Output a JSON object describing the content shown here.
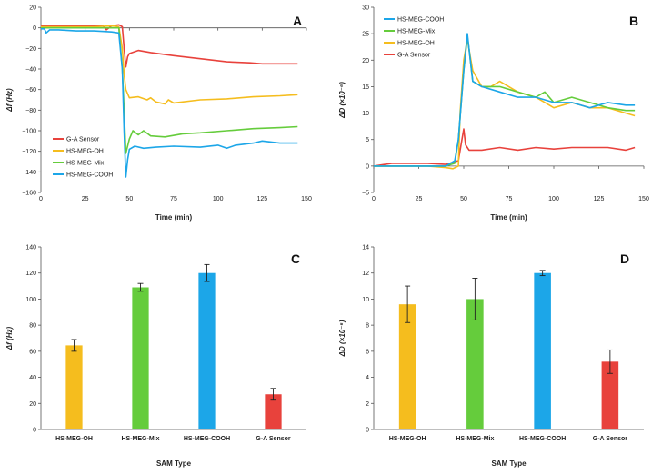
{
  "colors": {
    "red": "#e8423c",
    "yellow": "#f5bd1e",
    "green": "#65cc3c",
    "blue": "#1ca6e8",
    "axis": "#555555"
  },
  "chart_data": [
    {
      "panel": "A",
      "type": "line",
      "title": "",
      "xlabel": "Time (min)",
      "ylabel": "Δf (Hz)",
      "xlim": [
        0,
        150
      ],
      "ylim": [
        -160,
        20
      ],
      "xticks": [
        0,
        25,
        50,
        75,
        100,
        125,
        150
      ],
      "yticks": [
        20,
        0,
        -20,
        -40,
        -60,
        -80,
        -100,
        -120,
        -140,
        -160
      ],
      "legend_position": "bottom-left",
      "legend": [
        "G-A Sensor",
        "HS-MEG-OH",
        "HS-MEG-Mix",
        "HS-MEG-COOH"
      ],
      "series": [
        {
          "name": "G-A Sensor",
          "color": "red",
          "x": [
            0,
            10,
            20,
            30,
            35,
            37,
            40,
            44,
            46,
            47,
            48,
            49,
            50,
            55,
            62,
            75,
            90,
            105,
            118,
            125,
            135,
            145
          ],
          "y": [
            2,
            2,
            2,
            2,
            2,
            -2,
            2,
            3,
            1,
            -20,
            -38,
            -28,
            -25,
            -22,
            -24,
            -27,
            -30,
            -33,
            -34,
            -35,
            -35,
            -35
          ]
        },
        {
          "name": "HS-MEG-OH",
          "color": "yellow",
          "x": [
            0,
            10,
            20,
            30,
            40,
            44,
            46,
            47,
            48,
            50,
            55,
            60,
            62,
            65,
            70,
            72,
            75,
            90,
            105,
            120,
            135,
            145
          ],
          "y": [
            1,
            1,
            1,
            1,
            2,
            1,
            -20,
            -45,
            -60,
            -68,
            -67,
            -70,
            -68,
            -72,
            -74,
            -70,
            -73,
            -70,
            -69,
            -67,
            -66,
            -65
          ]
        },
        {
          "name": "HS-MEG-Mix",
          "color": "green",
          "x": [
            0,
            10,
            20,
            30,
            40,
            44,
            46,
            47,
            48,
            50,
            52,
            55,
            58,
            62,
            70,
            80,
            90,
            105,
            120,
            135,
            145
          ],
          "y": [
            0,
            0,
            0,
            0,
            0,
            0,
            -40,
            -80,
            -122,
            -108,
            -100,
            -104,
            -100,
            -105,
            -106,
            -103,
            -102,
            -100,
            -98,
            -97,
            -96
          ]
        },
        {
          "name": "HS-MEG-COOH",
          "color": "blue",
          "x": [
            0,
            2,
            3,
            5,
            10,
            20,
            30,
            40,
            44,
            46,
            47,
            48,
            49,
            50,
            53,
            58,
            65,
            75,
            90,
            100,
            105,
            110,
            120,
            125,
            135,
            145
          ],
          "y": [
            -1,
            -1,
            -5,
            -2,
            -2,
            -3,
            -3,
            -4,
            -5,
            -40,
            -100,
            -145,
            -128,
            -118,
            -115,
            -117,
            -116,
            -115,
            -116,
            -114,
            -117,
            -114,
            -112,
            -110,
            -112,
            -112
          ]
        }
      ]
    },
    {
      "panel": "B",
      "type": "line",
      "title": "",
      "xlabel": "Time (min)",
      "ylabel": "ΔD (×10⁻⁶)",
      "xlim": [
        0,
        150
      ],
      "ylim": [
        -5,
        30
      ],
      "xticks": [
        0,
        25,
        50,
        75,
        100,
        125,
        150
      ],
      "yticks": [
        30,
        25,
        20,
        15,
        10,
        5,
        0,
        -5
      ],
      "legend_position": "top-left",
      "legend": [
        "HS-MEG-COOH",
        "HS-MEG-Mix",
        "HS-MEG-OH",
        "G-A Sensor"
      ],
      "series": [
        {
          "name": "G-A Sensor",
          "color": "red",
          "x": [
            0,
            10,
            20,
            30,
            40,
            47,
            49,
            50,
            51,
            53,
            60,
            70,
            80,
            90,
            100,
            110,
            120,
            130,
            140,
            145
          ],
          "y": [
            0,
            0.5,
            0.5,
            0.5,
            0.3,
            1,
            5,
            7,
            4,
            3,
            3,
            3.5,
            3,
            3.5,
            3.2,
            3.5,
            3.5,
            3.5,
            3,
            3.5
          ]
        },
        {
          "name": "HS-MEG-OH",
          "color": "yellow",
          "x": [
            0,
            10,
            20,
            30,
            40,
            44,
            47,
            48,
            50,
            52,
            53,
            55,
            60,
            65,
            70,
            80,
            90,
            100,
            110,
            120,
            130,
            140,
            145
          ],
          "y": [
            0,
            0,
            0,
            0,
            -0.3,
            -0.5,
            0,
            10,
            20,
            24,
            22,
            18,
            15,
            15,
            16,
            14,
            13,
            11,
            12,
            11,
            11,
            10,
            9.5
          ]
        },
        {
          "name": "HS-MEG-Mix",
          "color": "green",
          "x": [
            0,
            10,
            20,
            30,
            40,
            45,
            47,
            50,
            52,
            53,
            55,
            60,
            70,
            80,
            90,
            95,
            100,
            110,
            120,
            130,
            140,
            145
          ],
          "y": [
            0,
            0,
            0,
            0,
            0,
            0.5,
            5,
            18,
            24.5,
            22,
            16,
            15,
            15,
            14,
            13,
            14,
            12,
            13,
            12,
            11,
            10.5,
            10.5
          ]
        },
        {
          "name": "HS-MEG-COOH",
          "color": "blue",
          "x": [
            0,
            10,
            20,
            30,
            40,
            45,
            47,
            50,
            52,
            53,
            55,
            60,
            70,
            80,
            90,
            100,
            110,
            120,
            130,
            140,
            145
          ],
          "y": [
            0,
            0,
            0,
            0,
            0,
            1,
            5,
            18,
            25,
            22,
            16,
            15,
            14,
            13,
            13,
            12,
            12,
            11,
            12,
            11.5,
            11.5
          ]
        }
      ]
    },
    {
      "panel": "C",
      "type": "bar",
      "title": "",
      "xlabel": "SAM Type",
      "ylabel": "Δf (Hz)",
      "ylim": [
        0,
        140
      ],
      "yticks": [
        0,
        20,
        40,
        60,
        80,
        100,
        120,
        140
      ],
      "categories": [
        "HS-MEG-OH",
        "HS-MEG-Mix",
        "HS-MEG-COOH",
        "G-A Sensor"
      ],
      "values": [
        64.5,
        109,
        120,
        27
      ],
      "errors": [
        4.5,
        3,
        6.5,
        4.5
      ],
      "bar_colors": [
        "yellow",
        "green",
        "blue",
        "red"
      ]
    },
    {
      "panel": "D",
      "type": "bar",
      "title": "",
      "xlabel": "SAM Type",
      "ylabel": "ΔD (×10⁻⁶)",
      "ylim": [
        0,
        14
      ],
      "yticks": [
        0,
        2,
        4,
        6,
        8,
        10,
        12,
        14
      ],
      "categories": [
        "HS-MEG-OH",
        "HS-MEG-Mix",
        "HS-MEG-COOH",
        "G-A Sensor"
      ],
      "values": [
        9.6,
        10,
        12,
        5.2
      ],
      "errors": [
        1.4,
        1.6,
        0.2,
        0.9
      ],
      "bar_colors": [
        "yellow",
        "green",
        "blue",
        "red"
      ]
    }
  ]
}
